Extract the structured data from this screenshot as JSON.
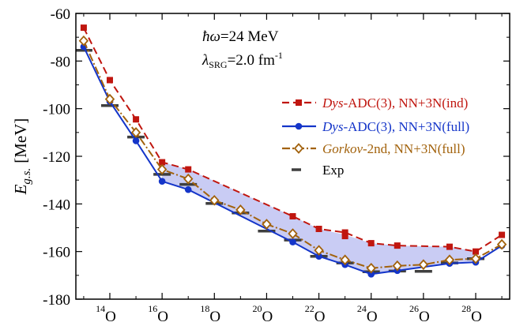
{
  "chart_data": {
    "type": "line",
    "ylabel": {
      "main": "E",
      "sub": "g.s.",
      "unit": "[MeV]"
    },
    "ylim": [
      -180,
      -60
    ],
    "yticks": [
      -180,
      -160,
      -140,
      -120,
      -100,
      -80,
      -60
    ],
    "xlim": [
      12.7,
      29.3
    ],
    "x_major_ticks": [
      14,
      16,
      18,
      20,
      22,
      24,
      26,
      28
    ],
    "x_minor_ticks": [
      13,
      15,
      17,
      19,
      21,
      23,
      25,
      27,
      29
    ],
    "xtick_labels": [
      {
        "mass": "14",
        "element": "O",
        "x": 14
      },
      {
        "mass": "16",
        "element": "O",
        "x": 16
      },
      {
        "mass": "18",
        "element": "O",
        "x": 18
      },
      {
        "mass": "20",
        "element": "O",
        "x": 20
      },
      {
        "mass": "22",
        "element": "O",
        "x": 22
      },
      {
        "mass": "24",
        "element": "O",
        "x": 24
      },
      {
        "mass": "26",
        "element": "O",
        "x": 26
      },
      {
        "mass": "28",
        "element": "O",
        "x": 28
      }
    ],
    "annotations": {
      "hw": {
        "symbol": "ħω",
        "text": "=24 MeV"
      },
      "lambda": {
        "symbol": "λ",
        "sub": "SRG",
        "text": "=2.0 fm",
        "sup": "-1"
      }
    },
    "series": [
      {
        "key": "ind",
        "legend": {
          "italic": "Dys",
          "rest": "-ADC(3),  NN+3N(ind)"
        },
        "color": "#c0160f",
        "dash": "9,5",
        "marker": "square",
        "x": [
          13,
          14,
          15,
          16,
          17,
          21,
          22,
          23,
          24,
          25,
          27,
          28,
          29
        ],
        "y": [
          -66,
          -88,
          -104.5,
          -122.5,
          -125.5,
          -145.2,
          -150.5,
          -152,
          -156.5,
          -157.5,
          -158,
          -160,
          -153
        ]
      },
      {
        "key": "ind_23b",
        "color": "#c0160f",
        "marker": "square",
        "x": [
          23
        ],
        "y": [
          -153.5
        ]
      },
      {
        "key": "full",
        "legend": {
          "italic": "Dys",
          "rest": "-ADC(3),  NN+3N(full)"
        },
        "color": "#1435c9",
        "dash": "",
        "marker": "circle",
        "x": [
          13,
          14,
          15,
          16,
          17,
          21,
          22,
          23,
          24,
          25,
          27,
          28,
          29
        ],
        "y": [
          -74,
          -97,
          -113.5,
          -130.5,
          -134,
          -156,
          -162,
          -165.5,
          -169.5,
          -168,
          -165,
          -164.5,
          -157.5
        ]
      },
      {
        "key": "gorkov",
        "legend": {
          "italic": "Gorkov",
          "rest": "-2nd,  NN+3N(full)"
        },
        "color": "#a2620c",
        "dash": "10,3,2,3",
        "marker": "diamond",
        "x": [
          13,
          14,
          15,
          16,
          17,
          18,
          19,
          20,
          21,
          22,
          23,
          24,
          25,
          26,
          27,
          28,
          29
        ],
        "y": [
          -71.5,
          -96,
          -110,
          -125.5,
          -129.5,
          -138.5,
          -142.5,
          -148.5,
          -152.5,
          -159.5,
          -163.5,
          -167,
          -166,
          -165.5,
          -163.5,
          -163,
          -157
        ]
      }
    ],
    "experiment": {
      "legend": "Exp",
      "color": "#3f3f3f",
      "x": [
        13,
        14,
        15,
        16,
        17,
        18,
        19,
        20,
        21,
        22,
        23,
        24,
        25,
        26,
        27,
        28
      ],
      "y": [
        -75.5,
        -98.7,
        -111.9,
        -127.6,
        -131.8,
        -139.8,
        -143.8,
        -151.4,
        -155.2,
        -162.0,
        -164.8,
        -168.5,
        -168.2,
        -168.3,
        -164.8,
        -163.0
      ]
    },
    "band": {
      "color": "#c9ccf4",
      "upper": {
        "x": [
          16,
          17,
          21,
          22,
          23,
          24,
          25,
          26,
          27,
          28
        ],
        "y": [
          -122.5,
          -125.5,
          -145.2,
          -150.5,
          -153,
          -156.5,
          -157.5,
          -157.8,
          -158,
          -160
        ]
      },
      "lower": {
        "x": [
          16,
          17,
          21,
          22,
          23,
          24,
          25,
          26,
          27,
          28
        ],
        "y": [
          -130.5,
          -134,
          -156,
          -162,
          -165.5,
          -169.5,
          -168,
          -166.5,
          -165,
          -164.5
        ]
      }
    }
  }
}
